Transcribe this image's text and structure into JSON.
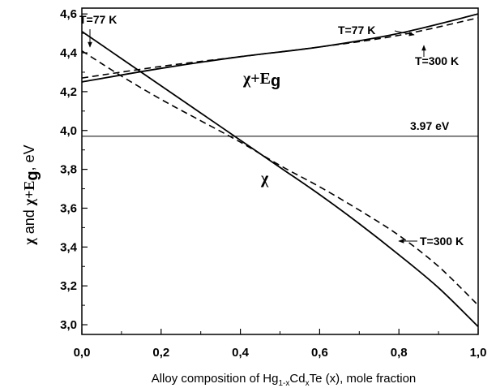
{
  "chart_data": {
    "type": "line",
    "xlabel_parts": [
      "Alloy composition of Hg",
      "1-x",
      "Cd",
      "x",
      "Te (x), mole fraction"
    ],
    "ylabel_parts": [
      "χ",
      " and ",
      "χ+E",
      "g",
      ", eV"
    ],
    "xlim": [
      0.0,
      1.0
    ],
    "ylim": [
      2.95,
      4.63
    ],
    "xticks": [
      "0,0",
      "0,2",
      "0,4",
      "0,6",
      "0,8",
      "1,0"
    ],
    "yticks": [
      "3,0",
      "3,2",
      "3,4",
      "3,6",
      "3,8",
      "4,0",
      "4,2",
      "4,4",
      "4,6"
    ],
    "reference_line": {
      "y": 3.97,
      "label": "3.97 eV"
    },
    "series": [
      {
        "name": "",
        "group": "chi+Eg",
        "temperature": "T=77 K",
        "style": "solid",
        "x": [
          0.0,
          0.2,
          0.4,
          0.6,
          0.8,
          1.0
        ],
        "y": [
          4.25,
          4.32,
          4.38,
          4.43,
          4.5,
          4.6
        ]
      },
      {
        "name": "",
        "group": "chi+Eg",
        "temperature": "T=300 K",
        "style": "dashed",
        "x": [
          0.0,
          0.2,
          0.4,
          0.6,
          0.8,
          1.0
        ],
        "y": [
          4.27,
          4.33,
          4.38,
          4.43,
          4.49,
          4.58
        ]
      },
      {
        "name": "",
        "group": "chi",
        "temperature": "T=77 K",
        "style": "solid",
        "x": [
          0.0,
          0.1,
          0.2,
          0.3,
          0.4,
          0.5,
          0.6,
          0.7,
          0.8,
          0.9,
          1.0
        ],
        "y": [
          4.51,
          4.37,
          4.23,
          4.09,
          3.95,
          3.81,
          3.67,
          3.52,
          3.36,
          3.19,
          2.99
        ]
      },
      {
        "name": "",
        "group": "chi",
        "temperature": "T=300 K",
        "style": "dashed",
        "x": [
          0.0,
          0.1,
          0.2,
          0.3,
          0.4,
          0.5,
          0.6,
          0.7,
          0.8,
          0.9,
          1.0
        ],
        "y": [
          4.41,
          4.28,
          4.16,
          4.05,
          3.94,
          3.82,
          3.71,
          3.59,
          3.46,
          3.3,
          3.1
        ]
      }
    ],
    "curve_labels": {
      "upper": "χ+E",
      "upper_sub": "g",
      "lower": "χ"
    },
    "annotations": [
      {
        "text": "T=77 K",
        "target": "chi, T=77 K"
      },
      {
        "text": "T=77 K",
        "target": "chi+Eg, T=77 K"
      },
      {
        "text": "T=300 K",
        "target": "chi+Eg, T=300 K"
      },
      {
        "text": "T=300 K",
        "target": "chi, T=300 K"
      }
    ],
    "grid": false,
    "legend": "none"
  }
}
